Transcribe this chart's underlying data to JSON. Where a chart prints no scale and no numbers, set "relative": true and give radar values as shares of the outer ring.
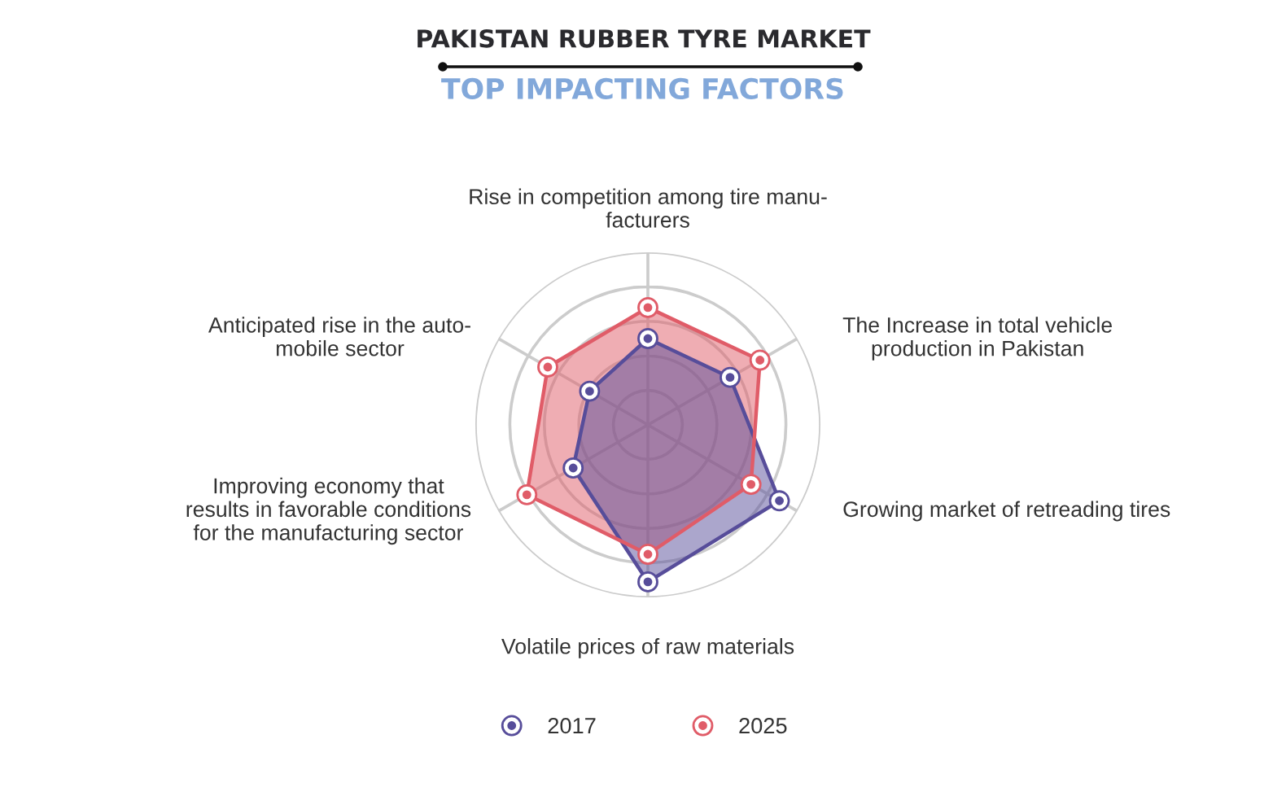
{
  "chart_data": {
    "type": "radar",
    "title": "PAKISTAN RUBBER TYRE MARKET",
    "subtitle": "TOP IMPACTING FACTORS",
    "categories": [
      "Rise in competition among tire manu-\nfacturers",
      "The Increase in total vehicle\nproduction in Pakistan",
      "Growing market of retreading tires",
      "Volatile prices of raw materials",
      "Improving economy that\nresults in favorable conditions\nfor the manufacturing sector",
      "Anticipated rise in the auto-\nmobile sector"
    ],
    "relative": true,
    "series": [
      {
        "name": "2017",
        "color": "#574d9a",
        "values": [
          0.5,
          0.55,
          0.88,
          0.91,
          0.5,
          0.39
        ]
      },
      {
        "name": "2025",
        "color": "#e05c68",
        "values": [
          0.68,
          0.75,
          0.69,
          0.75,
          0.81,
          0.67
        ]
      }
    ],
    "grid": true,
    "legend": "bottom",
    "marker": "circle"
  }
}
